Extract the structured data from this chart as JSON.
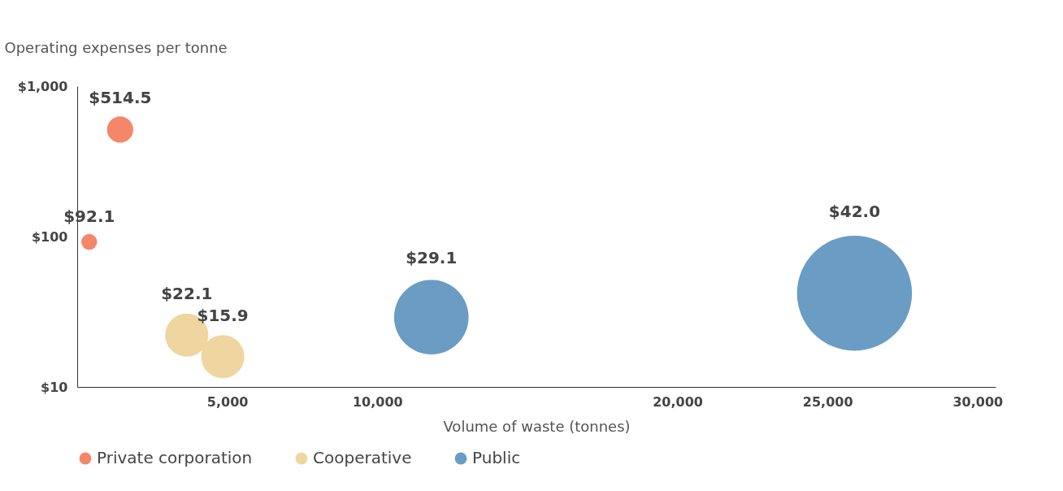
{
  "chart_data": {
    "type": "bubble",
    "xlabel": "Volume of waste (tonnes)",
    "ylabel": "Operating expenses per tonne",
    "log": "y",
    "xlim": [
      0,
      30600
    ],
    "xticks": [
      {
        "value": 5000,
        "label": "5,000"
      },
      {
        "value": 10000,
        "label": "10,000"
      },
      {
        "value": 20000,
        "label": "20,000"
      },
      {
        "value": 25000,
        "label": "25,000"
      },
      {
        "value": 30000,
        "label": "30,000"
      }
    ],
    "ylim": [
      10,
      1000
    ],
    "yticks": [
      {
        "value": 10,
        "label": "$10"
      },
      {
        "value": 100,
        "label": "$100"
      },
      {
        "value": 1000,
        "label": "$1,000"
      }
    ],
    "grid": false,
    "legend": "bottom",
    "series": [
      {
        "name": "Private corporation",
        "color": "#f4876a",
        "x": [
          400,
          1430
        ],
        "values": [
          92.1,
          514.5
        ],
        "sizes": [
          0.019,
          0.052
        ],
        "value_labels": [
          "$92.1",
          "$514.5"
        ]
      },
      {
        "name": "Cooperative",
        "color": "#efd59f",
        "x": [
          3650,
          4850
        ],
        "values": [
          22.1,
          15.9
        ],
        "sizes": [
          0.141,
          0.141
        ],
        "value_labels": [
          "$22.1",
          "$15.9"
        ]
      },
      {
        "name": "Public",
        "color": "#6a9cc4",
        "x": [
          11800,
          25900
        ],
        "values": [
          29.1,
          42.0
        ],
        "sizes": [
          0.42,
          1
        ],
        "value_labels": [
          "$29.1",
          "$42.0"
        ]
      }
    ]
  }
}
